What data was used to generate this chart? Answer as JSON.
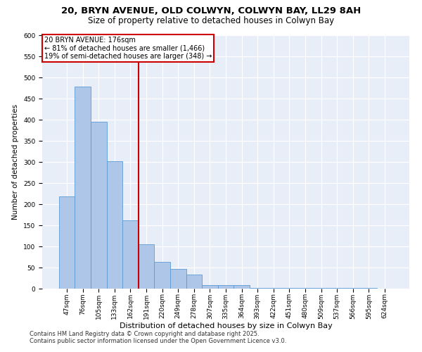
{
  "title": "20, BRYN AVENUE, OLD COLWYN, COLWYN BAY, LL29 8AH",
  "subtitle": "Size of property relative to detached houses in Colwyn Bay",
  "xlabel": "Distribution of detached houses by size in Colwyn Bay",
  "ylabel": "Number of detached properties",
  "categories": [
    "47sqm",
    "76sqm",
    "105sqm",
    "133sqm",
    "162sqm",
    "191sqm",
    "220sqm",
    "249sqm",
    "278sqm",
    "307sqm",
    "335sqm",
    "364sqm",
    "393sqm",
    "422sqm",
    "451sqm",
    "480sqm",
    "509sqm",
    "537sqm",
    "566sqm",
    "595sqm",
    "624sqm"
  ],
  "values": [
    219,
    479,
    395,
    302,
    162,
    105,
    63,
    47,
    33,
    8,
    8,
    8,
    2,
    1,
    1,
    1,
    1,
    1,
    1,
    1,
    0
  ],
  "bar_color": "#aec6e8",
  "bar_edge_color": "#5b9bd5",
  "vline_x": 4.5,
  "vline_color": "#cc0000",
  "annotation_line1": "20 BRYN AVENUE: 176sqm",
  "annotation_line2": "← 81% of detached houses are smaller (1,466)",
  "annotation_line3": "19% of semi-detached houses are larger (348) →",
  "annotation_box_color": "#cc0000",
  "ylim": [
    0,
    600
  ],
  "yticks": [
    0,
    50,
    100,
    150,
    200,
    250,
    300,
    350,
    400,
    450,
    500,
    550,
    600
  ],
  "background_color": "#e8eef8",
  "footer1": "Contains HM Land Registry data © Crown copyright and database right 2025.",
  "footer2": "Contains public sector information licensed under the Open Government Licence v3.0.",
  "title_fontsize": 9.5,
  "subtitle_fontsize": 8.5,
  "xlabel_fontsize": 8,
  "ylabel_fontsize": 7.5,
  "tick_fontsize": 6.5,
  "annotation_fontsize": 7,
  "footer_fontsize": 6
}
